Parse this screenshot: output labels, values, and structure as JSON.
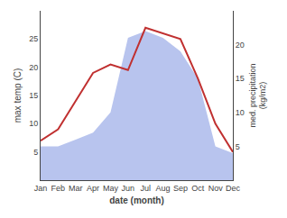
{
  "chart_data": {
    "type": "line",
    "xlabel": "date (month)",
    "ylabel": "max temp (C)",
    "y2label": "med. precipitation\n(kg/m2)",
    "categories": [
      "Jan",
      "Feb",
      "Mar",
      "Apr",
      "May",
      "Jun",
      "Jul",
      "Aug",
      "Sep",
      "Oct",
      "Nov",
      "Dec"
    ],
    "series": [
      {
        "type": "area",
        "axis": "y2",
        "color": "#b8c4ee",
        "values": [
          5,
          5,
          6,
          7,
          10,
          21,
          22,
          21,
          19,
          15,
          5,
          4
        ]
      },
      {
        "type": "line",
        "color": "#c03030",
        "values": [
          7,
          9,
          14,
          19,
          20.5,
          19.5,
          27,
          26,
          25,
          18,
          10,
          5
        ]
      }
    ],
    "ylim": [
      0,
      30
    ],
    "yticks": [
      5,
      10,
      15,
      20,
      25
    ],
    "y2lim": [
      0,
      25
    ],
    "y2ticks": [
      5,
      10,
      15,
      20
    ],
    "grid": false
  }
}
